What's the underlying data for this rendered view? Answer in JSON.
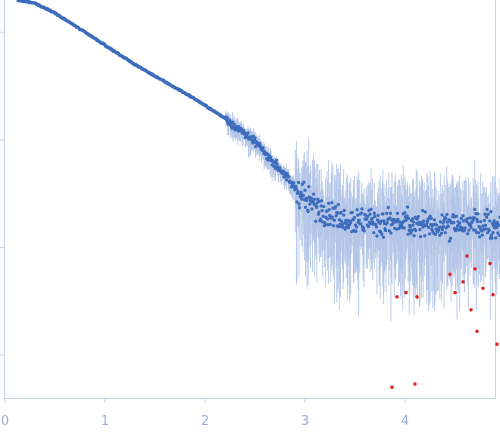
{
  "chart_data": {
    "type": "scatter",
    "title": "",
    "xlabel": "",
    "ylabel": "",
    "xlim": [
      0,
      4.95
    ],
    "ylim_log10": [
      -3.7,
      0.0
    ],
    "x_tick_labels": [
      "0",
      "1",
      "2",
      "3",
      "4"
    ],
    "x_ticks": [
      0,
      1,
      2,
      3,
      4
    ],
    "y_ticks_log10": [
      -0.3,
      -1.3,
      -2.3,
      -3.3
    ],
    "grid": false,
    "colors": {
      "axis": "#c8d2ea",
      "points": "#3e6cbd",
      "error_bars": "#b4c6e8",
      "outliers": "#e02020",
      "tick_labels": "#9aaed6"
    },
    "series": [
      {
        "role": "main",
        "color": "#3e6cbd",
        "curve": {
          "x": [
            0.12,
            0.3,
            0.5,
            0.7,
            1.0,
            1.3,
            1.6,
            1.9,
            2.2,
            2.5,
            2.7,
            2.9,
            3.1,
            3.5,
            4.0,
            4.95
          ],
          "log10_y": [
            0.0,
            -0.03,
            -0.12,
            -0.24,
            -0.42,
            -0.6,
            -0.76,
            -0.92,
            -1.1,
            -1.32,
            -1.52,
            -1.75,
            -1.92,
            -2.05,
            -2.08,
            -2.1
          ]
        }
      },
      {
        "role": "outliers",
        "color": "#e02020",
        "points": [
          {
            "x": 3.87,
            "log10_y": -3.6
          },
          {
            "x": 4.1,
            "log10_y": -3.57
          },
          {
            "x": 3.92,
            "log10_y": -2.76
          },
          {
            "x": 4.01,
            "log10_y": -2.72
          },
          {
            "x": 4.12,
            "log10_y": -2.76
          },
          {
            "x": 4.45,
            "log10_y": -2.55
          },
          {
            "x": 4.5,
            "log10_y": -2.72
          },
          {
            "x": 4.58,
            "log10_y": -2.62
          },
          {
            "x": 4.62,
            "log10_y": -2.38
          },
          {
            "x": 4.66,
            "log10_y": -2.88
          },
          {
            "x": 4.7,
            "log10_y": -2.5
          },
          {
            "x": 4.72,
            "log10_y": -3.08
          },
          {
            "x": 4.78,
            "log10_y": -2.68
          },
          {
            "x": 4.85,
            "log10_y": -2.45
          },
          {
            "x": 4.88,
            "log10_y": -2.74
          },
          {
            "x": 4.92,
            "log10_y": -3.2
          }
        ]
      }
    ]
  }
}
